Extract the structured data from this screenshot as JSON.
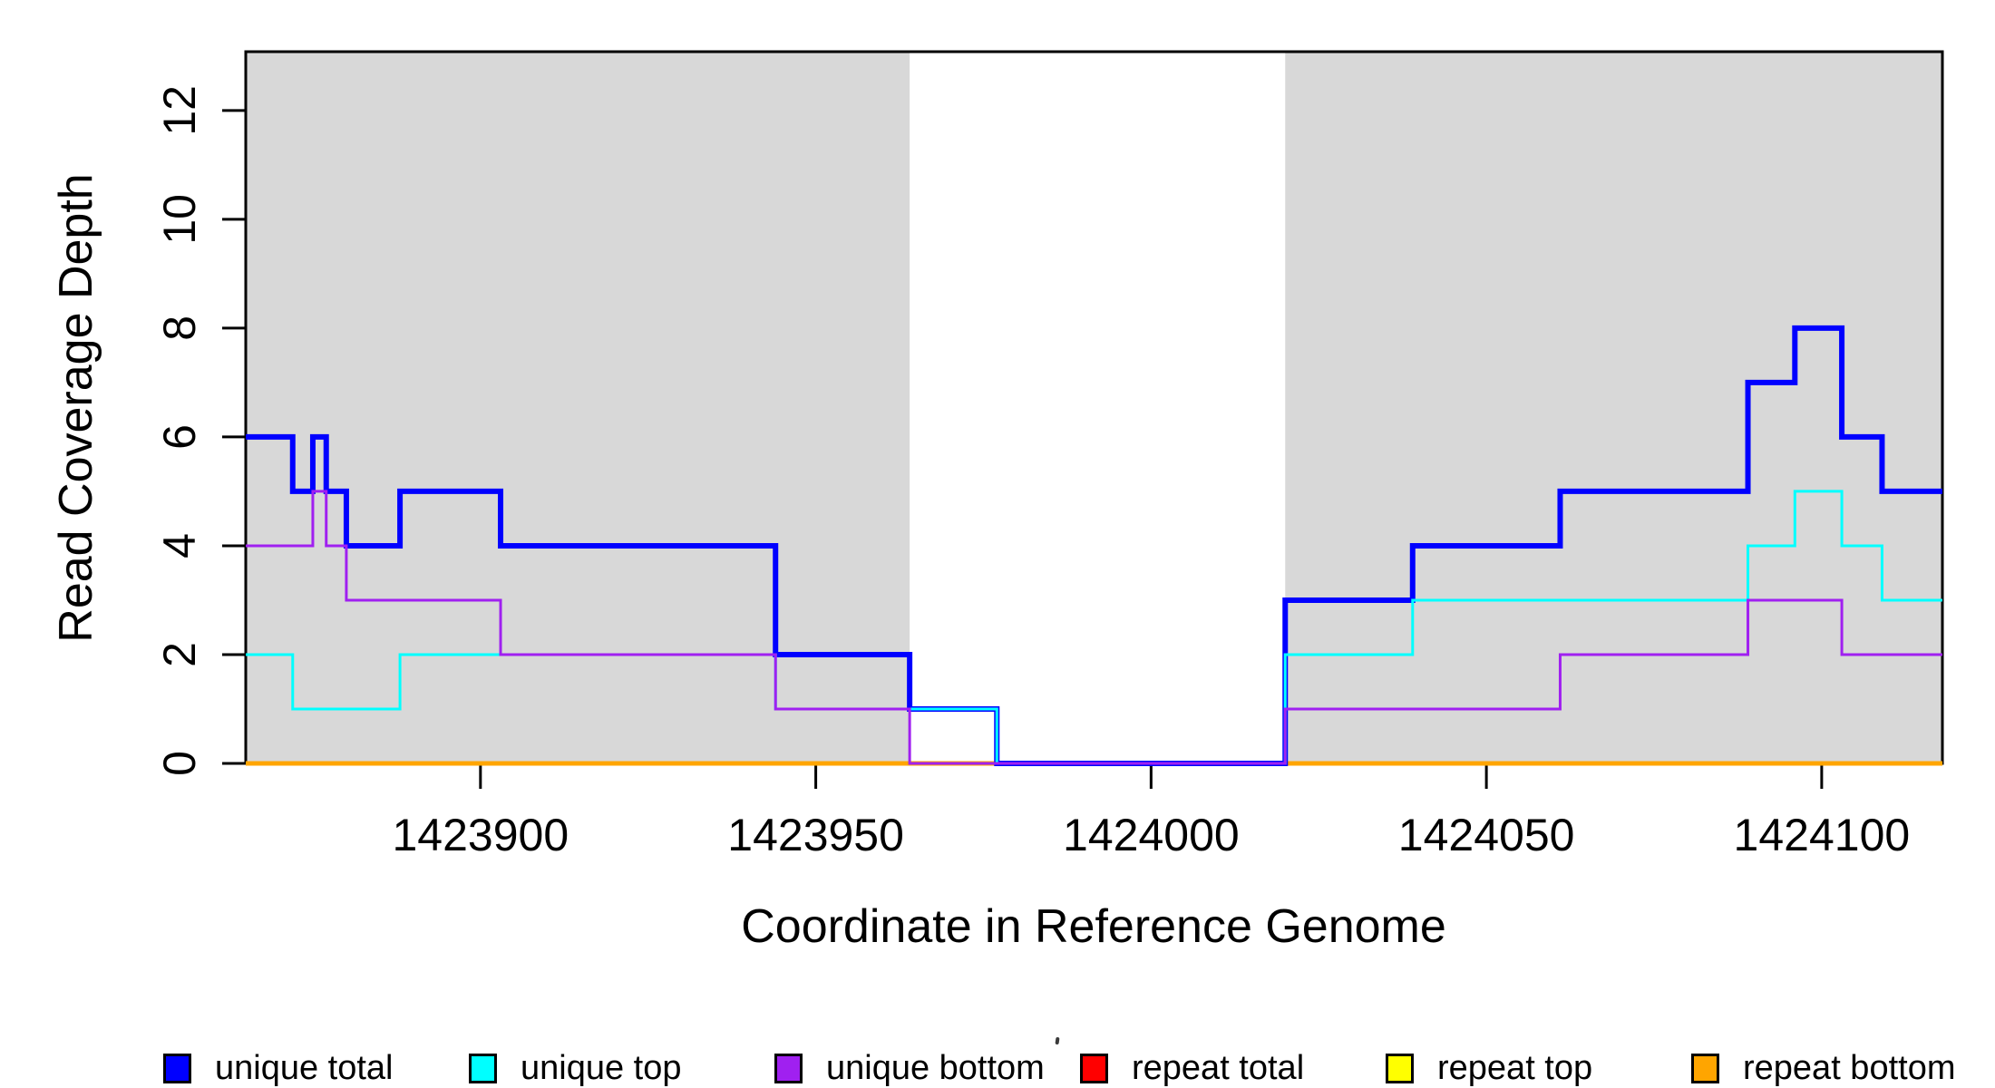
{
  "figure": {
    "background": "#FFFFFF"
  },
  "axes": {
    "x": {
      "label": "Coordinate in Reference Genome"
    },
    "y": {
      "label": "Read Coverage Depth"
    }
  },
  "colors": {
    "unique_total": "#0000FF",
    "unique_top": "#00FFFF",
    "unique_bottom": "#A020F0",
    "repeat_total": "#FF0000",
    "repeat_top": "#FFFF00",
    "repeat_bottom": "#FFA500",
    "shaded_region": "#D8D8D8",
    "axis": "#000000"
  },
  "chart_data": {
    "type": "line",
    "step": "after",
    "title": "",
    "xlabel": "Coordinate in Reference Genome",
    "ylabel": "Read Coverage Depth",
    "xlim": [
      1423865,
      1424118
    ],
    "ylim": [
      0,
      13.08
    ],
    "x_ticks": [
      "1423900",
      "1423950",
      "1424000",
      "1424050",
      "1424100"
    ],
    "x_tick_values": [
      1423900,
      1423950,
      1424000,
      1424050,
      1424100
    ],
    "y_ticks": [
      "0",
      "2",
      "4",
      "6",
      "8",
      "10",
      "12"
    ],
    "y_tick_values": [
      0,
      2,
      4,
      6,
      8,
      10,
      12
    ],
    "grid": false,
    "legend_position": "bottom",
    "shaded_regions": [
      {
        "name": "left-gray-region",
        "x0": 1423865,
        "x1": 1423964,
        "color": "#D8D8D8"
      },
      {
        "name": "right-gray-region",
        "x0": 1424020,
        "x1": 1424118,
        "color": "#D8D8D8"
      }
    ],
    "series": [
      {
        "name": "repeat total",
        "color": "#FF0000",
        "width": 3,
        "points": [
          [
            1423865,
            0
          ],
          [
            1424118,
            0
          ]
        ]
      },
      {
        "name": "repeat top",
        "color": "#FFFF00",
        "width": 3,
        "points": [
          [
            1423865,
            0
          ],
          [
            1424118,
            0
          ]
        ]
      },
      {
        "name": "repeat bottom",
        "color": "#FFA500",
        "width": 5,
        "points": [
          [
            1423865,
            0
          ],
          [
            1424118,
            0
          ]
        ]
      },
      {
        "name": "unique total",
        "color": "#0000FF",
        "width": 6,
        "points": [
          [
            1423865,
            6
          ],
          [
            1423872,
            5
          ],
          [
            1423875,
            6
          ],
          [
            1423877,
            5
          ],
          [
            1423880,
            4
          ],
          [
            1423888,
            5
          ],
          [
            1423903,
            4
          ],
          [
            1423944,
            2
          ],
          [
            1423964,
            1
          ],
          [
            1423977,
            0
          ],
          [
            1424020,
            3
          ],
          [
            1424039,
            4
          ],
          [
            1424061,
            5
          ],
          [
            1424089,
            7
          ],
          [
            1424096,
            8
          ],
          [
            1424103,
            6
          ],
          [
            1424109,
            5
          ],
          [
            1424118,
            5
          ]
        ]
      },
      {
        "name": "unique top",
        "color": "#00FFFF",
        "width": 3,
        "points": [
          [
            1423865,
            2
          ],
          [
            1423872,
            1
          ],
          [
            1423888,
            2
          ],
          [
            1423944,
            1
          ],
          [
            1423977,
            0
          ],
          [
            1424020,
            2
          ],
          [
            1424039,
            3
          ],
          [
            1424089,
            4
          ],
          [
            1424096,
            5
          ],
          [
            1424103,
            4
          ],
          [
            1424109,
            3
          ],
          [
            1424118,
            3
          ]
        ]
      },
      {
        "name": "unique bottom",
        "color": "#A020F0",
        "width": 3,
        "points": [
          [
            1423865,
            4
          ],
          [
            1423875,
            5
          ],
          [
            1423877,
            4
          ],
          [
            1423880,
            3
          ],
          [
            1423903,
            2
          ],
          [
            1423944,
            1
          ],
          [
            1423964,
            0
          ],
          [
            1424020,
            1
          ],
          [
            1424061,
            2
          ],
          [
            1424089,
            3
          ],
          [
            1424103,
            2
          ],
          [
            1424118,
            2
          ]
        ]
      }
    ]
  },
  "legend": {
    "items": [
      {
        "label": "unique total",
        "color": "#0000FF"
      },
      {
        "label": "unique top",
        "color": "#00FFFF"
      },
      {
        "label": "unique bottom",
        "color": "#A020F0"
      },
      {
        "label": "repeat total",
        "color": "#FF0000"
      },
      {
        "label": "repeat top",
        "color": "#FFFF00"
      },
      {
        "label": "repeat bottom",
        "color": "#FFA500"
      }
    ]
  }
}
